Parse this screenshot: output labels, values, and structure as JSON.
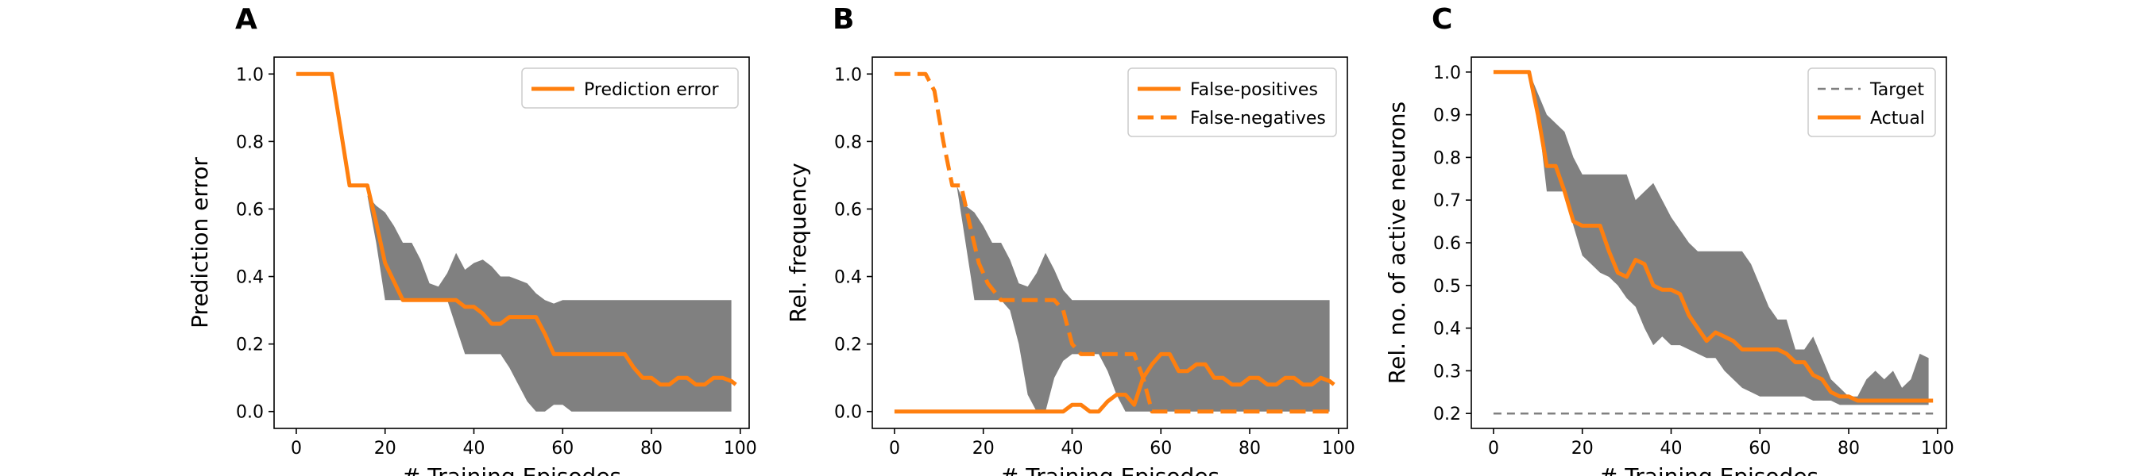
{
  "colors": {
    "line": "#ff7f0e",
    "band": "#808080",
    "target": "#808080",
    "frame": "#000000"
  },
  "chart_data": [
    {
      "type": "line",
      "panel_letter": "A",
      "xlabel": "# Training Episodes",
      "ylabel": "Prediction error",
      "xlim": [
        -5,
        102
      ],
      "ylim": [
        -0.05,
        1.05
      ],
      "xticks": [
        0,
        20,
        40,
        60,
        80,
        100
      ],
      "yticks": [
        0.0,
        0.2,
        0.4,
        0.6,
        0.8,
        1.0
      ],
      "ytick_labels": [
        "0.0",
        "0.2",
        "0.4",
        "0.6",
        "0.8",
        "1.0"
      ],
      "legend_position": "top-right",
      "band": {
        "x": [
          16,
          18,
          20,
          22,
          24,
          26,
          28,
          30,
          32,
          34,
          36,
          38,
          40,
          42,
          44,
          46,
          48,
          50,
          52,
          54,
          56,
          58,
          60,
          62,
          64,
          66,
          68,
          70,
          72,
          74,
          76,
          78,
          80,
          82,
          84,
          86,
          88,
          90,
          92,
          94,
          96,
          98
        ],
        "upper": [
          0.64,
          0.61,
          0.59,
          0.55,
          0.5,
          0.5,
          0.45,
          0.38,
          0.37,
          0.41,
          0.47,
          0.42,
          0.44,
          0.45,
          0.43,
          0.4,
          0.4,
          0.39,
          0.38,
          0.35,
          0.33,
          0.32,
          0.33,
          0.33,
          0.33,
          0.33,
          0.33,
          0.33,
          0.33,
          0.33,
          0.33,
          0.33,
          0.33,
          0.33,
          0.33,
          0.33,
          0.33,
          0.33,
          0.33,
          0.33,
          0.33,
          0.33
        ],
        "lower": [
          0.64,
          0.5,
          0.33,
          0.33,
          0.33,
          0.33,
          0.33,
          0.33,
          0.33,
          0.33,
          0.25,
          0.17,
          0.17,
          0.17,
          0.17,
          0.17,
          0.13,
          0.08,
          0.03,
          0.0,
          0.0,
          0.02,
          0.02,
          0.0,
          0.0,
          0.0,
          0.0,
          0.0,
          0.0,
          0.0,
          0.0,
          0.0,
          0.0,
          0.0,
          0.0,
          0.0,
          0.0,
          0.0,
          0.0,
          0.0,
          0.0,
          0.0
        ]
      },
      "series": [
        {
          "name": "Prediction error",
          "style": "solid",
          "x": [
            0,
            8,
            12,
            16,
            18,
            20,
            24,
            26,
            28,
            30,
            32,
            34,
            36,
            38,
            40,
            42,
            44,
            46,
            48,
            50,
            52,
            54,
            56,
            58,
            60,
            62,
            64,
            66,
            68,
            70,
            72,
            74,
            76,
            78,
            80,
            82,
            84,
            86,
            88,
            90,
            92,
            94,
            96,
            98,
            99
          ],
          "y": [
            1.0,
            1.0,
            0.67,
            0.67,
            0.56,
            0.44,
            0.33,
            0.33,
            0.33,
            0.33,
            0.33,
            0.33,
            0.33,
            0.31,
            0.31,
            0.29,
            0.26,
            0.26,
            0.28,
            0.28,
            0.28,
            0.28,
            0.23,
            0.17,
            0.17,
            0.17,
            0.17,
            0.17,
            0.17,
            0.17,
            0.17,
            0.17,
            0.13,
            0.1,
            0.1,
            0.08,
            0.08,
            0.1,
            0.1,
            0.08,
            0.08,
            0.1,
            0.1,
            0.09,
            0.08
          ]
        }
      ]
    },
    {
      "type": "line",
      "panel_letter": "B",
      "xlabel": "# Training Episodes",
      "ylabel": "Rel. frequency",
      "xlim": [
        -5,
        102
      ],
      "ylim": [
        -0.05,
        1.05
      ],
      "xticks": [
        0,
        20,
        40,
        60,
        80,
        100
      ],
      "yticks": [
        0.0,
        0.2,
        0.4,
        0.6,
        0.8,
        1.0
      ],
      "ytick_labels": [
        "0.0",
        "0.2",
        "0.4",
        "0.6",
        "0.8",
        "1.0"
      ],
      "legend_position": "top-right",
      "band": {
        "x": [
          14,
          16,
          18,
          20,
          22,
          24,
          26,
          28,
          30,
          32,
          34,
          36,
          38,
          40,
          42,
          44,
          46,
          48,
          50,
          52,
          54,
          56,
          58,
          60,
          62,
          64,
          66,
          68,
          70,
          72,
          74,
          76,
          78,
          80,
          82,
          84,
          86,
          88,
          90,
          92,
          94,
          96,
          98
        ],
        "upper": [
          0.67,
          0.61,
          0.59,
          0.55,
          0.5,
          0.5,
          0.45,
          0.38,
          0.37,
          0.41,
          0.47,
          0.42,
          0.36,
          0.33,
          0.33,
          0.33,
          0.33,
          0.33,
          0.33,
          0.33,
          0.33,
          0.33,
          0.33,
          0.33,
          0.33,
          0.33,
          0.33,
          0.33,
          0.33,
          0.33,
          0.33,
          0.33,
          0.33,
          0.33,
          0.33,
          0.33,
          0.33,
          0.33,
          0.33,
          0.33,
          0.33,
          0.33,
          0.33
        ],
        "lower": [
          0.67,
          0.5,
          0.33,
          0.33,
          0.33,
          0.33,
          0.3,
          0.2,
          0.05,
          0.0,
          0.0,
          0.1,
          0.15,
          0.17,
          0.17,
          0.17,
          0.17,
          0.12,
          0.05,
          0.0,
          0.0,
          0.0,
          0.0,
          0.0,
          0.0,
          0.0,
          0.0,
          0.0,
          0.0,
          0.0,
          0.0,
          0.0,
          0.0,
          0.0,
          0.0,
          0.0,
          0.0,
          0.0,
          0.0,
          0.0,
          0.0,
          0.0,
          0.0
        ]
      },
      "series": [
        {
          "name": "False-positives",
          "style": "solid",
          "x": [
            0,
            36,
            38,
            40,
            42,
            44,
            46,
            48,
            50,
            52,
            54,
            56,
            58,
            60,
            62,
            64,
            66,
            68,
            70,
            72,
            74,
            76,
            78,
            80,
            82,
            84,
            86,
            88,
            90,
            92,
            94,
            96,
            98,
            99
          ],
          "y": [
            0.0,
            0.0,
            0.0,
            0.02,
            0.02,
            0.0,
            0.0,
            0.03,
            0.05,
            0.05,
            0.02,
            0.1,
            0.14,
            0.17,
            0.17,
            0.12,
            0.12,
            0.14,
            0.14,
            0.1,
            0.1,
            0.08,
            0.08,
            0.1,
            0.1,
            0.08,
            0.08,
            0.1,
            0.1,
            0.08,
            0.08,
            0.1,
            0.09,
            0.08
          ]
        },
        {
          "name": "False-negatives",
          "style": "dashed",
          "x": [
            0,
            7,
            9,
            11,
            13,
            15,
            17,
            19,
            21,
            24,
            28,
            32,
            36,
            38,
            40,
            42,
            46,
            50,
            52,
            54,
            56,
            58,
            60,
            64,
            70,
            80,
            90,
            99
          ],
          "y": [
            1.0,
            1.0,
            0.95,
            0.8,
            0.67,
            0.67,
            0.55,
            0.44,
            0.38,
            0.33,
            0.33,
            0.33,
            0.33,
            0.3,
            0.2,
            0.17,
            0.17,
            0.17,
            0.17,
            0.17,
            0.1,
            0.0,
            0.0,
            0.0,
            0.0,
            0.0,
            0.0,
            0.0
          ]
        }
      ]
    },
    {
      "type": "line",
      "panel_letter": "C",
      "xlabel": "# Training Episodes",
      "ylabel": "Rel. no. of active neurons",
      "xlim": [
        -5,
        102
      ],
      "ylim": [
        0.165,
        1.035
      ],
      "xticks": [
        0,
        20,
        40,
        60,
        80,
        100
      ],
      "yticks": [
        0.2,
        0.3,
        0.4,
        0.5,
        0.6,
        0.7,
        0.8,
        0.9,
        1.0
      ],
      "ytick_labels": [
        "0.2",
        "0.3",
        "0.4",
        "0.5",
        "0.6",
        "0.7",
        "0.8",
        "0.9",
        "1.0"
      ],
      "legend_position": "top-right",
      "band": {
        "x": [
          8,
          10,
          12,
          14,
          16,
          18,
          20,
          22,
          24,
          26,
          28,
          30,
          32,
          34,
          36,
          38,
          40,
          42,
          44,
          46,
          48,
          50,
          52,
          54,
          56,
          58,
          60,
          62,
          64,
          66,
          68,
          70,
          72,
          74,
          76,
          78,
          80,
          82,
          84,
          86,
          88,
          90,
          92,
          94,
          96,
          98
        ],
        "upper": [
          1.0,
          0.95,
          0.9,
          0.88,
          0.86,
          0.8,
          0.76,
          0.76,
          0.76,
          0.76,
          0.76,
          0.76,
          0.7,
          0.72,
          0.74,
          0.7,
          0.66,
          0.63,
          0.6,
          0.58,
          0.58,
          0.58,
          0.58,
          0.58,
          0.58,
          0.55,
          0.5,
          0.45,
          0.42,
          0.42,
          0.35,
          0.35,
          0.38,
          0.33,
          0.28,
          0.26,
          0.24,
          0.24,
          0.28,
          0.3,
          0.28,
          0.3,
          0.26,
          0.28,
          0.34,
          0.33
        ],
        "lower": [
          1.0,
          0.9,
          0.72,
          0.72,
          0.72,
          0.64,
          0.57,
          0.55,
          0.53,
          0.52,
          0.5,
          0.47,
          0.45,
          0.4,
          0.36,
          0.38,
          0.36,
          0.36,
          0.35,
          0.34,
          0.33,
          0.33,
          0.3,
          0.28,
          0.26,
          0.25,
          0.24,
          0.24,
          0.24,
          0.24,
          0.24,
          0.24,
          0.23,
          0.23,
          0.23,
          0.22,
          0.22,
          0.22,
          0.22,
          0.22,
          0.22,
          0.22,
          0.22,
          0.22,
          0.22,
          0.22
        ]
      },
      "series": [
        {
          "name": "Target",
          "style": "dashed",
          "x": [
            0,
            99
          ],
          "y": [
            0.2,
            0.2
          ]
        },
        {
          "name": "Actual",
          "style": "solid",
          "x": [
            0,
            8,
            10,
            12,
            14,
            16,
            18,
            20,
            22,
            24,
            26,
            28,
            30,
            32,
            34,
            36,
            38,
            40,
            42,
            44,
            46,
            48,
            50,
            52,
            54,
            56,
            58,
            60,
            62,
            64,
            66,
            68,
            70,
            72,
            74,
            76,
            78,
            80,
            82,
            84,
            86,
            88,
            90,
            92,
            94,
            96,
            98,
            99
          ],
          "y": [
            1.0,
            1.0,
            0.9,
            0.78,
            0.78,
            0.72,
            0.65,
            0.64,
            0.64,
            0.64,
            0.58,
            0.53,
            0.52,
            0.56,
            0.55,
            0.5,
            0.49,
            0.49,
            0.48,
            0.43,
            0.4,
            0.37,
            0.39,
            0.38,
            0.37,
            0.35,
            0.35,
            0.35,
            0.35,
            0.35,
            0.34,
            0.32,
            0.32,
            0.29,
            0.28,
            0.25,
            0.24,
            0.24,
            0.23,
            0.23,
            0.23,
            0.23,
            0.23,
            0.23,
            0.23,
            0.23,
            0.23,
            0.23
          ]
        }
      ]
    }
  ]
}
